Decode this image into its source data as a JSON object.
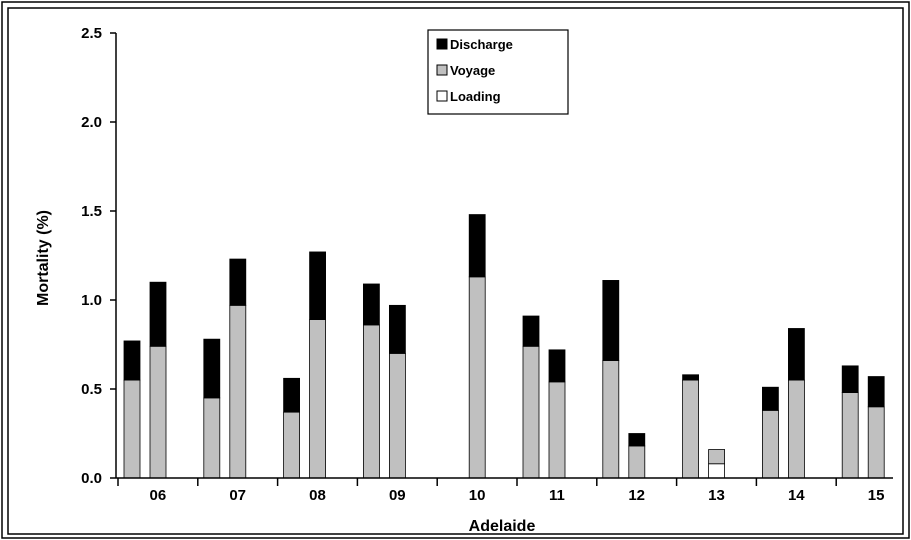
{
  "chart_data": {
    "type": "bar",
    "stacked": true,
    "xlabel": "Adelaide",
    "ylabel": "Mortality (%)",
    "ylim": [
      0,
      2.5
    ],
    "yticks": [
      "0.0",
      "0.5",
      "1.0",
      "1.5",
      "2.0",
      "2.5"
    ],
    "categories": [
      "06",
      "07",
      "08",
      "09",
      "10",
      "11",
      "12",
      "13",
      "14",
      "15"
    ],
    "legend_position": "top-center",
    "legend_order": [
      "Discharge",
      "Voyage",
      "Loading"
    ],
    "bars": [
      {
        "category": "06",
        "slot": 0,
        "series": {
          "Loading": 0,
          "Voyage": 0.55,
          "Discharge": 0.22
        }
      },
      {
        "category": "06",
        "slot": 1,
        "series": {
          "Loading": 0,
          "Voyage": 0.74,
          "Discharge": 0.36
        }
      },
      {
        "category": "07",
        "slot": 0,
        "series": {
          "Loading": 0,
          "Voyage": 0.45,
          "Discharge": 0.33
        }
      },
      {
        "category": "07",
        "slot": 1,
        "series": {
          "Loading": 0,
          "Voyage": 0.97,
          "Discharge": 0.26
        }
      },
      {
        "category": "08",
        "slot": 0,
        "series": {
          "Loading": 0,
          "Voyage": 0.37,
          "Discharge": 0.19
        }
      },
      {
        "category": "08",
        "slot": 1,
        "series": {
          "Loading": 0,
          "Voyage": 0.89,
          "Discharge": 0.38
        }
      },
      {
        "category": "09",
        "slot": 0,
        "series": {
          "Loading": 0,
          "Voyage": 0.86,
          "Discharge": 0.23
        }
      },
      {
        "category": "09",
        "slot": 1,
        "series": {
          "Loading": 0,
          "Voyage": 0.7,
          "Discharge": 0.27
        }
      },
      {
        "category": "10",
        "slot": 1,
        "series": {
          "Loading": 0,
          "Voyage": 1.13,
          "Discharge": 0.35
        }
      },
      {
        "category": "11",
        "slot": 0,
        "series": {
          "Loading": 0,
          "Voyage": 0.74,
          "Discharge": 0.17
        }
      },
      {
        "category": "11",
        "slot": 1,
        "series": {
          "Loading": 0,
          "Voyage": 0.54,
          "Discharge": 0.18
        }
      },
      {
        "category": "12",
        "slot": 0,
        "series": {
          "Loading": 0,
          "Voyage": 0.66,
          "Discharge": 0.45
        }
      },
      {
        "category": "12",
        "slot": 1,
        "series": {
          "Loading": 0,
          "Voyage": 0.18,
          "Discharge": 0.07
        }
      },
      {
        "category": "13",
        "slot": 0,
        "series": {
          "Loading": 0,
          "Voyage": 0.55,
          "Discharge": 0.03
        }
      },
      {
        "category": "13",
        "slot": 1,
        "series": {
          "Loading": 0.08,
          "Voyage": 0.08,
          "Discharge": 0
        }
      },
      {
        "category": "14",
        "slot": 0,
        "series": {
          "Loading": 0,
          "Voyage": 0.38,
          "Discharge": 0.13
        }
      },
      {
        "category": "14",
        "slot": 1,
        "series": {
          "Loading": 0,
          "Voyage": 0.55,
          "Discharge": 0.29
        }
      },
      {
        "category": "15",
        "slot": 0,
        "series": {
          "Loading": 0,
          "Voyage": 0.48,
          "Discharge": 0.15
        }
      },
      {
        "category": "15",
        "slot": 1,
        "series": {
          "Loading": 0,
          "Voyage": 0.4,
          "Discharge": 0.17
        }
      }
    ],
    "series": [
      {
        "name": "Loading",
        "color": "#ffffff"
      },
      {
        "name": "Voyage",
        "color": "#c0c0c0"
      },
      {
        "name": "Discharge",
        "color": "#000000"
      }
    ]
  }
}
